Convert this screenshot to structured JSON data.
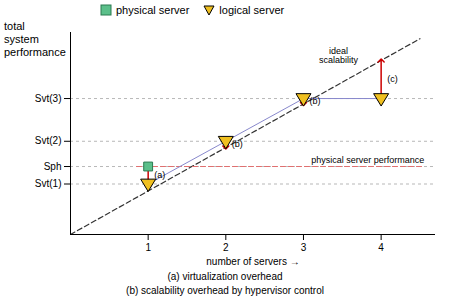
{
  "chart_data": {
    "type": "line",
    "xlabel": "number of servers",
    "ylabel": "total\nsystem\nperformance",
    "xlim": [
      0,
      4.7
    ],
    "ylim": [
      0,
      5.2
    ],
    "xticks": [
      1,
      2,
      3,
      4
    ],
    "yticks": [
      {
        "value": 1.3,
        "label": "Svt(1)"
      },
      {
        "value": 1.75,
        "label": "Sph"
      },
      {
        "value": 2.4,
        "label": "Svt(2)"
      },
      {
        "value": 3.5,
        "label": "Svt(3)"
      }
    ],
    "grid": "y",
    "legend": "upper left",
    "series": [
      {
        "name": "physical server",
        "type": "scatter",
        "marker": "square",
        "color": "#5bbf8a",
        "edge_color": "#2a7a50",
        "x": [
          1
        ],
        "values": [
          1.75
        ]
      },
      {
        "name": "logical server",
        "type": "line",
        "marker": "triangle-down",
        "color": "#f0c020",
        "line_color": "#8888cc",
        "x": [
          1,
          2,
          3,
          4
        ],
        "values": [
          1.3,
          2.4,
          3.5,
          3.5
        ]
      }
    ],
    "reference_lines": [
      {
        "x": [
          0,
          4.5
        ],
        "values": [
          0,
          5.04
        ],
        "color": "#333333",
        "line_style": "dashed"
      },
      {
        "x": [
          0.85,
          4.55
        ],
        "values": [
          1.75,
          1.75
        ],
        "color": "#e07070",
        "line_style": "dashed"
      }
    ],
    "arrows": {
      "color": "#cc0000",
      "items": [
        {
          "x": 1,
          "from": 1.3,
          "to": 1.75,
          "label": "(a)"
        },
        {
          "x": 2,
          "from": 2.4,
          "to": 2.24,
          "label": "(b)"
        },
        {
          "x": 3,
          "from": 3.5,
          "to": 3.36,
          "label": "(b)"
        },
        {
          "x": 4,
          "from": 3.5,
          "to": 4.48,
          "label": "(c)"
        }
      ]
    },
    "annotations": [
      {
        "text": "ideal\nscalability",
        "x": 3.45,
        "y": 4.6
      },
      {
        "text": "physical server performance",
        "x": 3.1,
        "y": 1.85
      }
    ],
    "captions": [
      "(a)  virtualization overhead",
      "(b)  scalability overhead by hypervisor control"
    ]
  }
}
